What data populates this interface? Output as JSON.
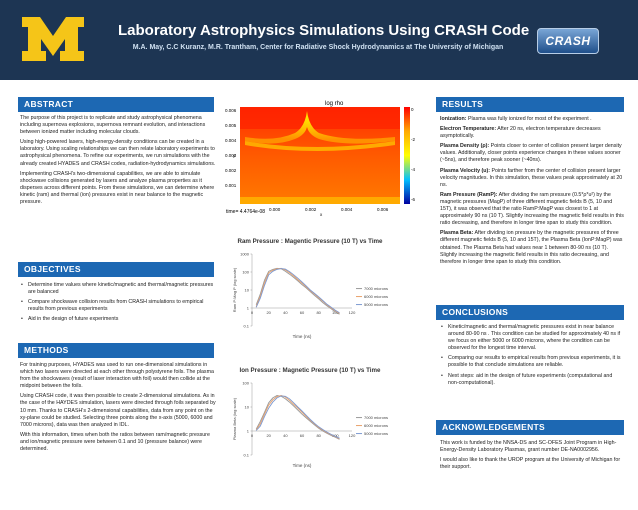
{
  "header": {
    "title": "Laboratory Astrophysics Simulations Using CRASH Code",
    "subtitle": "M.A. May, C.C Kuranz, M.R. Trantham, Center for Radiative Shock Hydrodynamics at The University of Michigan",
    "logo_text": "CRASH",
    "colors": {
      "band": "#1d3553",
      "section": "#1d68b3",
      "maize": "#f5c518"
    }
  },
  "abstract": {
    "heading": "ABSTRACT",
    "paragraphs": [
      "The purpose of this project is to replicate and study astrophysical phenomena including supernova explosions, supernova remnant evolution, and interactions between ionized matter including molecular clouds.",
      "Using high-powered lasers, high-energy-density conditions can be created in a laboratory. Using scaling relationships we can then relate laboratory experiments to astrophysical phenomena. To refine our experiments, we run simulations with the already created HYADES and CRASH codes, radiation-hydrodynamics simulations.",
      "Implementing CRASH's two-dimensional capabilities, we are able to simulate shockwave collisions generated by lasers and analyze plasma properties as it disperses across different points. From these simulations, we can determine where kinetic (ram) and thermal (ion) pressures exist in near balance to the magnetic pressure."
    ]
  },
  "objectives": {
    "heading": "OBJECTIVES",
    "items": [
      "Determine time values where kinetic/magnetic and thermal/magnetic pressures are balanced",
      "Compare shockwave collision results from CRASH simulations to empirical results from previous experiments",
      "Aid in the design of future experiments"
    ]
  },
  "methods": {
    "heading": "METHODS",
    "paragraphs": [
      "For training purposes, HYADES was used to run one-dimensional simulations in which two lasers were directed at each other through polystyrene foils. The plasma from the shockwaves (result of laser interaction with foil) would then collide at the midpoint between the foils.",
      "Using CRASH code, it was then possible to create 2-dimensional simulations. As in the case of the HAYDES simulation, lasers were directed through foils separated by 10 mm. Thanks to CRASH's 2-dimensional capabilities, data from any point on the xy-plane could be studied. Selecting three points along the x-axis (5000, 6000 and 7000 microns), data was then analyzed in IDL.",
      "With this information, times when both the ratios between ram/magnetic pressure and ion/magnetic pressure were between 0.1 and 10 (pressure balance) were determined."
    ]
  },
  "results": {
    "heading": "RESULTS",
    "items": [
      {
        "label": "Ionization:",
        "text": " Plasma was fully ionized for most of the experiment ."
      },
      {
        "label": "Electron Temperature:",
        "text": " After 20 ns, electron temperature decreases asymptotically."
      },
      {
        "label": "Plasma Density (ρ):",
        "text": " Points closer to center of collision present larger density values. Additionally, closer points experience changes in these values sooner (~5ns), and therefore peak sooner (~40ns)."
      },
      {
        "label": "Plasma Velocity (u):",
        "text": " Points farther from the center of collision present larger velocity magnitudes. In this simulation, these values peak approximately at 20 ns."
      },
      {
        "label": "Ram Pressure (RamP):",
        "text": " After dividing the ram pressure (0.5*ρ*u²) by the magnetic pressures (MagP) of three different magnetic fields B (5, 10 and 15T), it was observed that the ratio RamP:MagP was closest to 1 at approximately 90 ns (10 T). Slightly increasing the magnetic field results in this ratio decreasing, and therefore in longer time span to study this condition."
      },
      {
        "label": "Plasma Beta:",
        "text": " After dividing ion pressure by the magnetic pressures of three different magnetic fields B (5, 10 and 15T), the Plasma Beta (IonP:MagP) was obtained. The Plasma Beta had values near 1 between 80-90 ns (10 T). Slightly increasing the magnetic field results in this ratio decreasing, and therefore in longer time span to study this condition."
      }
    ]
  },
  "conclusions": {
    "heading": "CONCLUSIONS",
    "items": [
      "Kinetic/magnetic and thermal/magnetic pressures exist in near balance around 80-90 ns . This condition can be studied for approximately 40 ns if we focus on either 5000 or 6000 microns, where the condition can be observed for the longest time interval.",
      "Comparing our results to empirical results from previous experiments, it is possible to that conclude simulations are reliable.",
      "Next steps: aid in the design of future experiments (computational and non-computational)."
    ]
  },
  "acknowledgements": {
    "heading": "ACKNOWLEDGEMENTS",
    "paragraphs": [
      "This work is funded by the NNSA-DS and SC-OFES Joint Program in High-Energy-Density Laboratory Plasmas, grant number DE-NA0002956.",
      "I would also like to thank the UROP program at the University of Michigan for their support."
    ]
  },
  "simulation": {
    "title": "log rho",
    "x_label": "x",
    "y_label": "y",
    "x_ticks": [
      "0.000",
      "0.002",
      "0.004",
      "0.006"
    ],
    "y_ticks": [
      "0.006",
      "0.005",
      "0.004",
      "0.003",
      "0.002",
      "0.001"
    ],
    "colorbar_ticks": [
      "0",
      "-2",
      "-4",
      "-6"
    ],
    "time_label": "time= 4.4764e-08"
  },
  "chart_data": [
    {
      "type": "line",
      "title": "Ram Pressure : Magentic Pressure (10 T) vs Time",
      "xlabel": "Time (ns)",
      "ylabel": "Ram P:Mag P (log scale)",
      "y_scale": "log",
      "xlim": [
        0,
        120
      ],
      "ylim": [
        0.1,
        1000
      ],
      "x_ticks": [
        "0",
        "20",
        "40",
        "60",
        "80",
        "100",
        "120"
      ],
      "y_ticks": [
        "1000",
        "100",
        "10",
        "1",
        "0.1"
      ],
      "legend_position": "right",
      "x": [
        5,
        10,
        15,
        20,
        25,
        30,
        35,
        40,
        45,
        50,
        55,
        60,
        65,
        70,
        75,
        80,
        85,
        90,
        95,
        100,
        105
      ],
      "series": [
        {
          "name": "7000 microns",
          "color": "#9a9a9a",
          "values": [
            1.5,
            6,
            35,
            110,
            140,
            160,
            150,
            110,
            75,
            50,
            32,
            20,
            13,
            8,
            5,
            3.2,
            2,
            1.3,
            0.9,
            0.6,
            0.45
          ]
        },
        {
          "name": "6000 microns",
          "color": "#e9a06a",
          "values": [
            1.2,
            4.5,
            25,
            90,
            125,
            150,
            160,
            130,
            90,
            60,
            38,
            24,
            15,
            9,
            6,
            3.8,
            2.4,
            1.5,
            1.0,
            0.7,
            0.5
          ]
        },
        {
          "name": "5000 microns",
          "color": "#7d9ad1",
          "values": [
            1.1,
            3.5,
            18,
            70,
            110,
            140,
            155,
            145,
            105,
            70,
            45,
            28,
            17,
            10,
            6.5,
            4.2,
            2.6,
            1.6,
            1.1,
            0.75,
            0.55
          ]
        }
      ]
    },
    {
      "type": "line",
      "title": "Ion Pressure : Magnetic Pressure (10 T) vs Time",
      "xlabel": "Time (ns)",
      "ylabel": "Plasma Beta (log scale)",
      "y_scale": "log",
      "xlim": [
        0,
        120
      ],
      "ylim": [
        0.1,
        100
      ],
      "x_ticks": [
        "0",
        "20",
        "40",
        "60",
        "80",
        "100",
        "120"
      ],
      "y_ticks": [
        "100",
        "10",
        "1",
        "0.1"
      ],
      "legend_position": "right",
      "x": [
        5,
        10,
        15,
        20,
        25,
        30,
        35,
        40,
        45,
        50,
        55,
        60,
        65,
        70,
        75,
        80,
        85,
        90,
        95,
        100,
        105
      ],
      "series": [
        {
          "name": "7000 microns",
          "color": "#9a9a9a",
          "values": [
            1.2,
            2.5,
            6,
            15,
            24,
            30,
            28,
            22,
            16,
            11,
            7.5,
            5,
            3.5,
            2.5,
            1.8,
            1.3,
            1.0,
            0.8,
            0.65,
            0.55,
            0.45
          ]
        },
        {
          "name": "6000 microns",
          "color": "#e9a06a",
          "values": [
            1.1,
            2.0,
            5,
            12,
            20,
            27,
            30,
            26,
            19,
            13,
            9,
            6,
            4,
            2.8,
            2.0,
            1.4,
            1.1,
            0.85,
            0.7,
            0.58,
            0.48
          ]
        },
        {
          "name": "5000 microns",
          "color": "#7d9ad1",
          "values": [
            1.05,
            1.6,
            4,
            9,
            16,
            24,
            29,
            28,
            22,
            15,
            10,
            6.8,
            4.5,
            3.0,
            2.1,
            1.5,
            1.15,
            0.9,
            0.72,
            0.6,
            0.5
          ]
        }
      ]
    }
  ]
}
